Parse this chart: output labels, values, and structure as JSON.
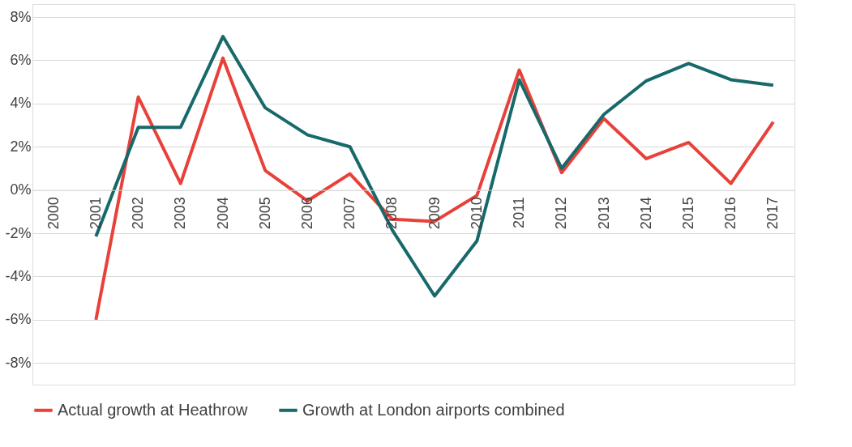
{
  "chart_data": {
    "type": "line",
    "categories": [
      "2000",
      "2001",
      "2002",
      "2003",
      "2004",
      "2005",
      "2006",
      "2007",
      "2008",
      "2009",
      "2010",
      "2011",
      "2012",
      "2013",
      "2014",
      "2015",
      "2016",
      "2017"
    ],
    "series": [
      {
        "name": "Actual growth at Heathrow",
        "color": "#e8413a",
        "values": [
          null,
          -6.0,
          4.3,
          0.3,
          6.1,
          0.9,
          -0.5,
          0.75,
          -1.35,
          -1.45,
          -0.25,
          5.55,
          0.8,
          3.3,
          1.45,
          2.2,
          0.3,
          3.15
        ]
      },
      {
        "name": "Growth at London airports combined",
        "color": "#18696a",
        "values": [
          null,
          -2.15,
          2.9,
          2.9,
          7.1,
          3.8,
          2.55,
          2.0,
          -1.85,
          -4.9,
          -2.35,
          5.1,
          1.0,
          3.5,
          5.05,
          5.85,
          5.1,
          4.85
        ]
      }
    ],
    "ylim": [
      -9,
      8.6
    ],
    "yticks": [
      {
        "value": -8,
        "label": "-8%"
      },
      {
        "value": -6,
        "label": "-6%"
      },
      {
        "value": -4,
        "label": "-4%"
      },
      {
        "value": -2,
        "label": "-2%"
      },
      {
        "value": 0,
        "label": "0%"
      },
      {
        "value": 2,
        "label": "2%"
      },
      {
        "value": 4,
        "label": "4%"
      },
      {
        "value": 6,
        "label": "6%"
      },
      {
        "value": 8,
        "label": "8%"
      }
    ],
    "grid": "y",
    "legend": "bottom",
    "marker": "none",
    "line_style": "solid"
  }
}
